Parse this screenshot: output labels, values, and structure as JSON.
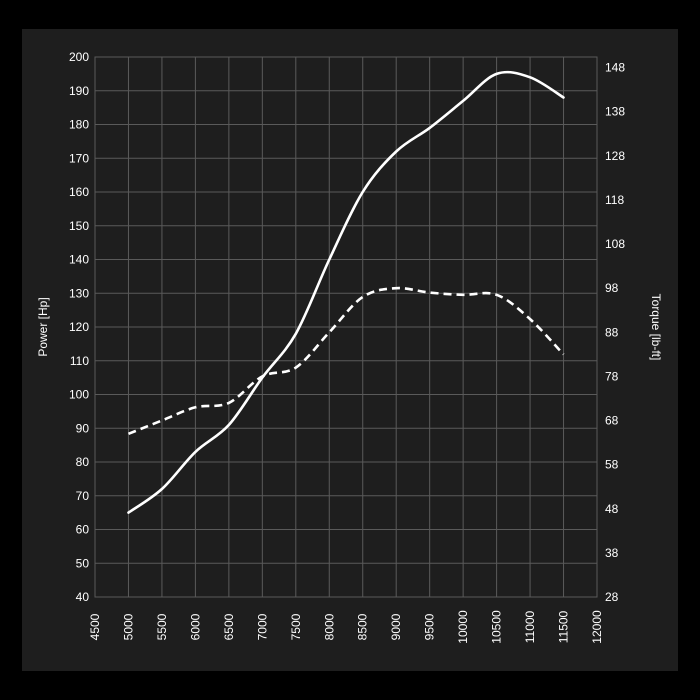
{
  "chart_data": {
    "type": "line",
    "title": "",
    "xlabel": "",
    "ylabel_left": "Power [Hp]",
    "ylabel_right": "Torque [lb-ft]",
    "xlim": [
      4500,
      12000
    ],
    "x_ticks": [
      4500,
      5000,
      5500,
      6000,
      6500,
      7000,
      7500,
      8000,
      8500,
      9000,
      9500,
      10000,
      10500,
      11000,
      11500,
      12000
    ],
    "ylim_left": [
      40,
      200
    ],
    "y_ticks_left": [
      40,
      50,
      60,
      70,
      80,
      90,
      100,
      110,
      120,
      130,
      140,
      150,
      160,
      170,
      180,
      190,
      200
    ],
    "ylim_right": [
      28,
      150.4
    ],
    "y_ticks_right": [
      28,
      38,
      48,
      58,
      68,
      78,
      88,
      98,
      108,
      118,
      128,
      138,
      148
    ],
    "grid": true,
    "legend": "none",
    "colors": {
      "panel": "#1e1e1e",
      "grid": "#5a5a5a",
      "line": "#ffffff",
      "text": "#ffffff"
    },
    "series": [
      {
        "axis": "left",
        "style": "solid",
        "x": [
          5000,
          5500,
          6000,
          6500,
          7000,
          7500,
          8000,
          8500,
          9000,
          9500,
          10000,
          10500,
          11000,
          11500
        ],
        "y": [
          65,
          72,
          83,
          91,
          105,
          118,
          140,
          160,
          172,
          179,
          187,
          195,
          194,
          188
        ]
      },
      {
        "axis": "right",
        "style": "dashed",
        "x": [
          5000,
          5500,
          6000,
          6500,
          7000,
          7500,
          8000,
          8500,
          9000,
          9500,
          10000,
          10500,
          11000,
          11500
        ],
        "y": [
          65,
          68,
          71,
          72,
          78,
          80,
          88,
          96,
          98,
          97,
          96.5,
          96.5,
          91,
          83
        ]
      }
    ]
  }
}
